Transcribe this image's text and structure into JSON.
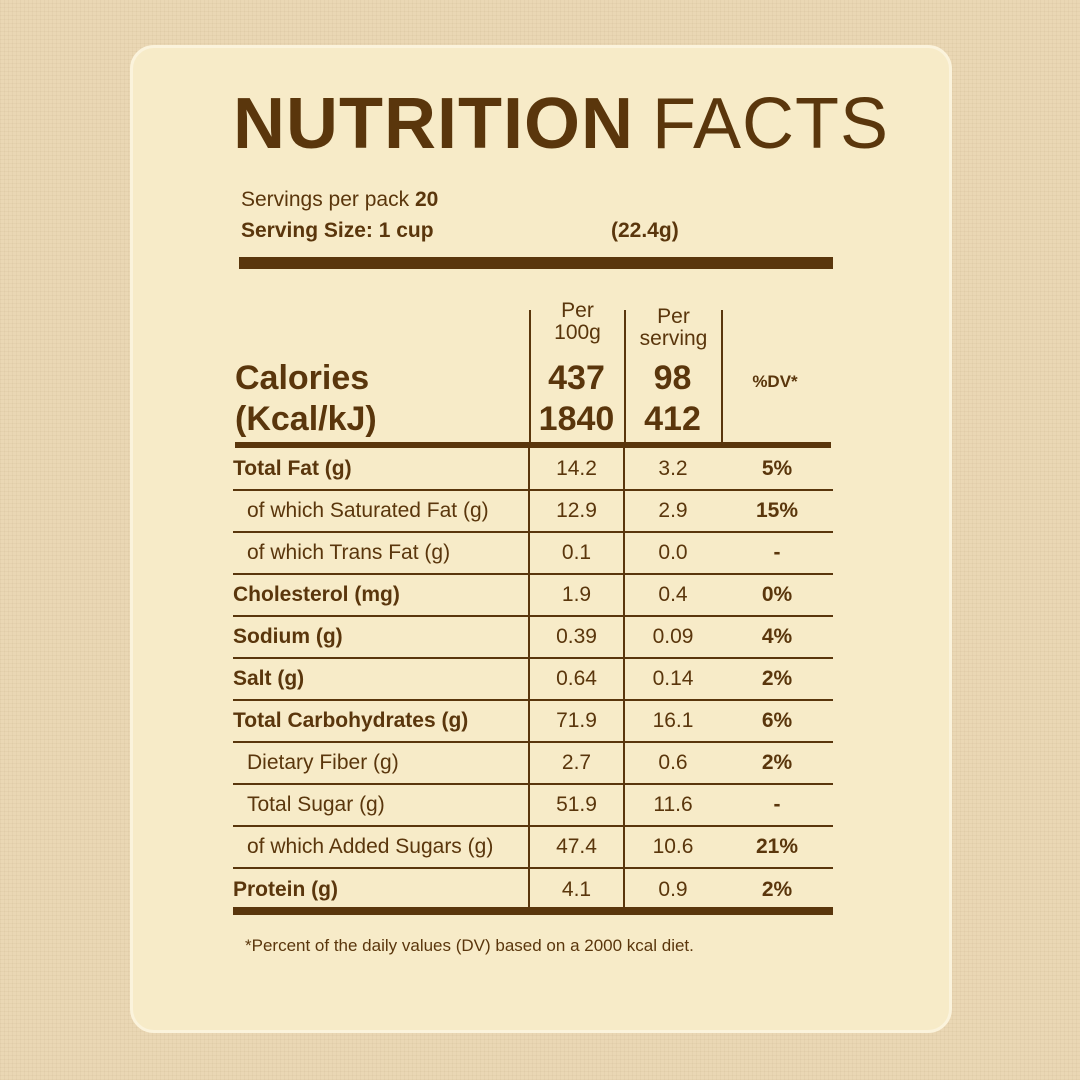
{
  "title": {
    "bold": "NUTRITION",
    "light": "FACTS"
  },
  "servings": {
    "label": "Servings per pack",
    "value": "20"
  },
  "serving_size": {
    "label": "Serving Size: 1 cup",
    "grams": "(22.4g)"
  },
  "headers": {
    "per100_line1": "Per",
    "per100_line2": "100g",
    "perserv_line1": "Per",
    "perserv_line2": "serving",
    "dv": "%DV*"
  },
  "calories": {
    "label1": "Calories",
    "label2": "(Kcal/kJ)",
    "kcal_100g": "437",
    "kcal_serving": "98",
    "kj_100g": "1840",
    "kj_serving": "412"
  },
  "rows": [
    {
      "name": "Total Fat (g)",
      "per100g": "14.2",
      "perServing": "3.2",
      "dv": "5%"
    },
    {
      "name": "of which Saturated Fat (g)",
      "per100g": "12.9",
      "perServing": "2.9",
      "dv": "15%"
    },
    {
      "name": "of which Trans Fat (g)",
      "per100g": "0.1",
      "perServing": "0.0",
      "dv": "-"
    },
    {
      "name": "Cholesterol (mg)",
      "per100g": "1.9",
      "perServing": "0.4",
      "dv": "0%"
    },
    {
      "name": "Sodium (g)",
      "per100g": "0.39",
      "perServing": "0.09",
      "dv": "4%"
    },
    {
      "name": "Salt (g)",
      "per100g": "0.64",
      "perServing": "0.14",
      "dv": "2%"
    },
    {
      "name": "Total Carbohydrates (g)",
      "per100g": "71.9",
      "perServing": "16.1",
      "dv": "6%"
    },
    {
      "name": "Dietary Fiber (g)",
      "per100g": "2.7",
      "perServing": "0.6",
      "dv": "2%"
    },
    {
      "name": "Total Sugar (g)",
      "per100g": "51.9",
      "perServing": "11.6",
      "dv": "-"
    },
    {
      "name": "of which Added Sugars (g)",
      "per100g": "47.4",
      "perServing": "10.6",
      "dv": "21%"
    },
    {
      "name": "Protein (g)",
      "per100g": "4.1",
      "perServing": "0.9",
      "dv": "2%"
    }
  ],
  "footnote": "*Percent of the daily values (DV) based on a 2000 kcal diet.",
  "colors": {
    "text": "#5a360c",
    "card": "#f7ebc8",
    "background": "#ead7b4"
  }
}
